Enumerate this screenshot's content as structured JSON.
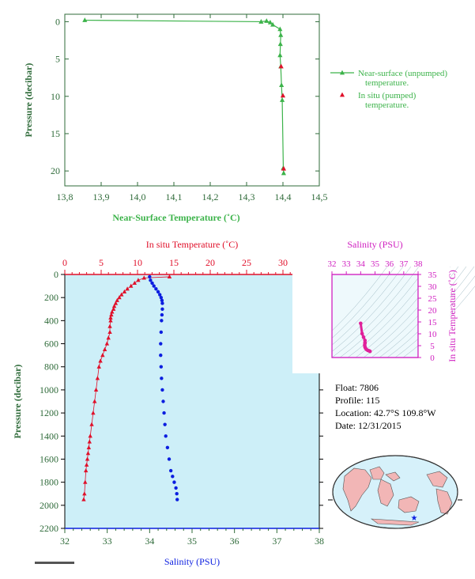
{
  "colors": {
    "green": "#3cb34a",
    "dark_green": "#2f6b3a",
    "red": "#e0102a",
    "blue": "#0b1ee0",
    "magenta": "#d020c0",
    "pink": "#e0209a",
    "panel_bg": "#cdeff8",
    "land": "#f2b6b6",
    "ocean": "#d6f1fa"
  },
  "info": {
    "float": "Float:  7806",
    "profile": "Profile:  115",
    "location": "Location:  42.7°S  109.8°W",
    "date": "Date:  12/31/2015"
  },
  "map": {
    "marker": "float-position",
    "marker_glyph": "★"
  },
  "chart_data": [
    {
      "id": "near_surface",
      "type": "line",
      "title": "",
      "xlabel": "Near-Surface Temperature (˚C)",
      "ylabel": "Pressure (decibar)",
      "xlim": [
        13.8,
        14.5
      ],
      "ylim": [
        22,
        -1
      ],
      "xticks": [
        "13,8",
        "13,9",
        "14,0",
        "14,1",
        "14,2",
        "14,3",
        "14,4",
        "14,5"
      ],
      "yticks": [
        "0",
        "5",
        "10",
        "15",
        "20"
      ],
      "legend_position": "right",
      "series": [
        {
          "name": "Near-surface (unpumped) temperature.",
          "legend_lines": [
            "Near-surface (unpumped)",
            "temperature."
          ],
          "color": "#3cb34a",
          "marker": "triangle",
          "line": true,
          "x": [
            13.855,
            14.34,
            14.355,
            14.365,
            14.372,
            14.392,
            14.394,
            14.393,
            14.392,
            14.394,
            14.396,
            14.398,
            14.401,
            14.402
          ],
          "y": [
            -0.2,
            0.0,
            -0.1,
            0.1,
            0.4,
            1.0,
            1.8,
            3.0,
            4.5,
            6.0,
            8.5,
            10.5,
            19.6,
            20.3
          ]
        },
        {
          "name": "In situ (pumped) temperature.",
          "legend_lines": [
            "In situ (pumped)",
            "temperature."
          ],
          "color": "#e0102a",
          "marker": "triangle",
          "line": false,
          "x": [
            14.395,
            14.4,
            14.402
          ],
          "y": [
            6.0,
            9.9,
            19.7
          ]
        }
      ]
    },
    {
      "id": "profile",
      "type": "line",
      "title": "",
      "xlabel": "Salinity (PSU)",
      "x2label": "In situ Temperature (˚C)",
      "ylabel": "Pressure (decibar)",
      "salinity_lim": [
        32,
        38
      ],
      "temperature_lim": [
        0,
        35
      ],
      "ylim": [
        2200,
        0
      ],
      "salinity_ticks": [
        "32",
        "33",
        "34",
        "35",
        "36",
        "37",
        "38"
      ],
      "temperature_ticks": [
        "0",
        "5",
        "10",
        "15",
        "20",
        "25",
        "30",
        "35"
      ],
      "pressure_ticks": [
        "0",
        "200",
        "400",
        "600",
        "800",
        "1000",
        "1200",
        "1400",
        "1600",
        "1800",
        "2000",
        "2200"
      ],
      "series": [
        {
          "name": "In situ Temperature (˚C)",
          "color": "#e0102a",
          "marker": "triangle",
          "axis": "temperature",
          "x": [
            14.4,
            10.9,
            10.1,
            9.6,
            9.1,
            8.6,
            8.2,
            7.8,
            7.5,
            7.2,
            7.0,
            6.8,
            6.7,
            6.5,
            6.4,
            6.3,
            6.3,
            6.2,
            6.2,
            6.0,
            5.8,
            5.5,
            5.2,
            4.9,
            4.7,
            4.5,
            4.3,
            4.1,
            3.9,
            3.7,
            3.5,
            3.4,
            3.3,
            3.2,
            3.1,
            3.0,
            2.9,
            2.8,
            2.7,
            2.6
          ],
          "y": [
            20,
            30,
            50,
            75,
            100,
            125,
            150,
            175,
            200,
            225,
            250,
            275,
            300,
            325,
            350,
            375,
            400,
            450,
            500,
            550,
            600,
            650,
            700,
            750,
            800,
            900,
            1000,
            1100,
            1200,
            1300,
            1400,
            1450,
            1500,
            1550,
            1600,
            1650,
            1700,
            1800,
            1900,
            1950
          ]
        },
        {
          "name": "Salinity (PSU)",
          "color": "#0b1ee0",
          "marker": "circle",
          "axis": "salinity",
          "x": [
            34.0,
            34.02,
            34.06,
            34.1,
            34.15,
            34.2,
            34.24,
            34.27,
            34.29,
            34.3,
            34.3,
            34.29,
            34.28,
            34.27,
            34.26,
            34.26,
            34.27,
            34.28,
            34.3,
            34.32,
            34.34,
            34.36,
            34.38,
            34.42,
            34.46,
            34.5,
            34.54,
            34.58,
            34.62,
            34.64,
            34.65
          ],
          "y": [
            20,
            50,
            75,
            100,
            125,
            150,
            175,
            200,
            225,
            250,
            300,
            350,
            400,
            500,
            600,
            700,
            800,
            900,
            1000,
            1100,
            1200,
            1300,
            1400,
            1500,
            1600,
            1700,
            1750,
            1800,
            1850,
            1900,
            1950
          ]
        }
      ]
    },
    {
      "id": "ts_diagram",
      "type": "scatter",
      "title": "",
      "xlabel": "Salinity (PSU)",
      "ylabel": "In situ Temperature (˚C)",
      "xlim": [
        32,
        38
      ],
      "ylim": [
        0,
        35
      ],
      "xticks": [
        "32",
        "33",
        "34",
        "35",
        "36",
        "37",
        "38"
      ],
      "yticks": [
        "0",
        "5",
        "10",
        "15",
        "20",
        "25",
        "30",
        "35"
      ],
      "series": [
        {
          "name": "profile",
          "color": "#e0209a",
          "x": [
            34.0,
            34.1,
            34.2,
            34.3,
            34.3,
            34.3,
            34.28,
            34.3,
            34.34,
            34.4,
            34.5,
            34.6,
            34.65
          ],
          "y": [
            14.4,
            10.1,
            8.6,
            7.2,
            6.3,
            6.0,
            5.2,
            4.5,
            3.9,
            3.4,
            3.0,
            2.8,
            2.6
          ]
        }
      ]
    }
  ]
}
